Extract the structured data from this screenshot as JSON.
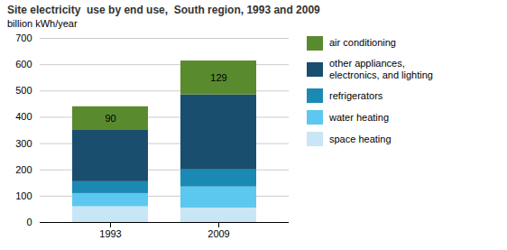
{
  "chart_data": {
    "type": "bar",
    "title": "Site electricity  use by end use,  South region, 1993 and 2009",
    "ylabel": "billion kWh/year",
    "categories": [
      "1993",
      "2009"
    ],
    "stacked": true,
    "series": [
      {
        "name": "space heating",
        "color": "#c8e6f5",
        "values": [
          60,
          55
        ]
      },
      {
        "name": "water heating",
        "color": "#5cc8ef",
        "values": [
          50,
          80
        ]
      },
      {
        "name": "refrigerators",
        "color": "#1a8ab4",
        "values": [
          45,
          65
        ]
      },
      {
        "name": "other appliances,\nelectronics, and lighting",
        "color": "#1a4e6e",
        "values": [
          195,
          285
        ]
      },
      {
        "name": "air conditioning",
        "color": "#5a8a2e",
        "values": [
          90,
          129
        ],
        "data_labels": true
      }
    ],
    "ylim": [
      0,
      700
    ],
    "yticks": [
      0,
      100,
      200,
      300,
      400,
      500,
      600,
      700
    ],
    "grid": true,
    "legend": "right"
  }
}
